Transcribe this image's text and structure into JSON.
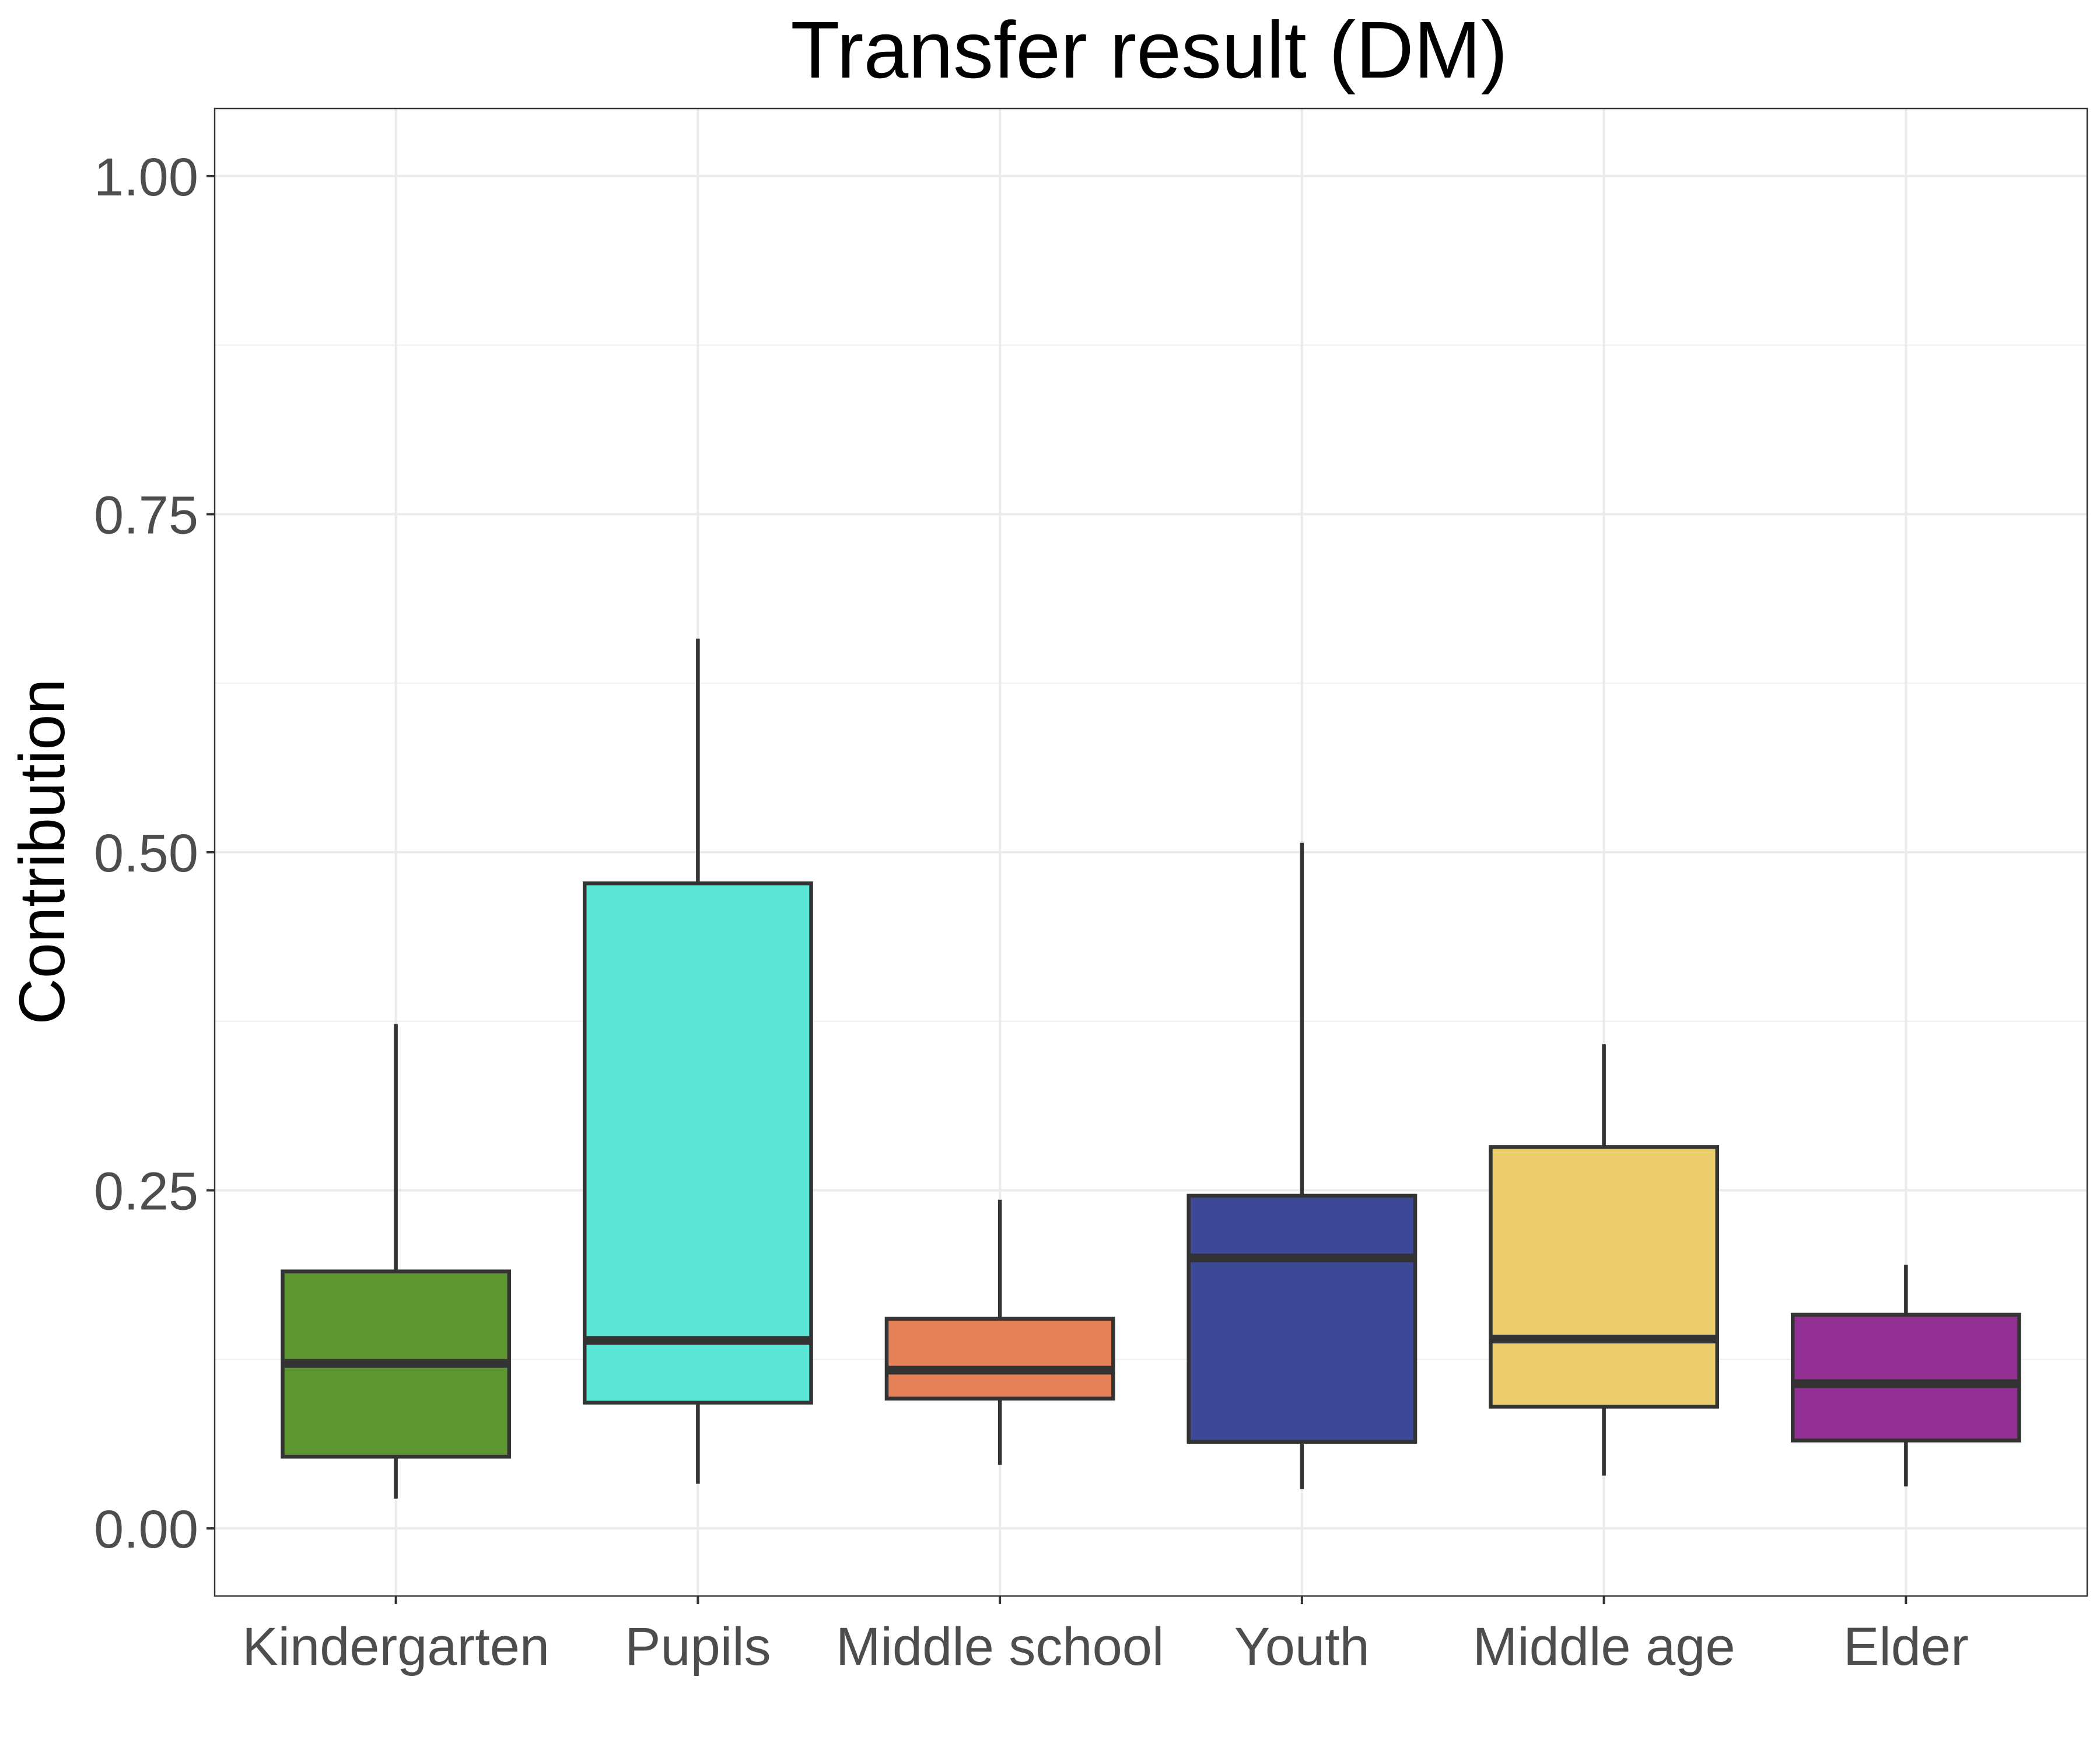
{
  "chart_data": {
    "type": "boxplot",
    "title": "Transfer result (DM)",
    "xlabel": "",
    "ylabel": "Contribution",
    "ylim": [
      -0.05,
      1.05
    ],
    "yticks": [
      0.0,
      0.25,
      0.5,
      0.75,
      1.0
    ],
    "ytick_labels": [
      "0.00",
      "0.25",
      "0.50",
      "0.75",
      "1.00"
    ],
    "grid": true,
    "legend": "none",
    "categories": [
      "Kindergarten",
      "Pupils",
      "Middle school",
      "Youth",
      "Middle age",
      "Elder"
    ],
    "boxes": [
      {
        "category": "Kindergarten",
        "whisker_low": 0.022,
        "q1": 0.053,
        "median": 0.122,
        "q3": 0.19,
        "whisker_high": 0.373,
        "color": "#5e9732"
      },
      {
        "category": "Pupils",
        "whisker_low": 0.033,
        "q1": 0.093,
        "median": 0.139,
        "q3": 0.477,
        "whisker_high": 0.658,
        "color": "#5be6d8"
      },
      {
        "category": "Middle school",
        "whisker_low": 0.047,
        "q1": 0.096,
        "median": 0.117,
        "q3": 0.155,
        "whisker_high": 0.243,
        "color": "#e58158"
      },
      {
        "category": "Youth",
        "whisker_low": 0.029,
        "q1": 0.064,
        "median": 0.2,
        "q3": 0.246,
        "whisker_high": 0.507,
        "color": "#3d4896"
      },
      {
        "category": "Middle age",
        "whisker_low": 0.039,
        "q1": 0.09,
        "median": 0.14,
        "q3": 0.282,
        "whisker_high": 0.358,
        "color": "#ebce6b"
      },
      {
        "category": "Elder",
        "whisker_low": 0.031,
        "q1": 0.065,
        "median": 0.107,
        "q3": 0.158,
        "whisker_high": 0.195,
        "color": "#922f93"
      }
    ]
  }
}
